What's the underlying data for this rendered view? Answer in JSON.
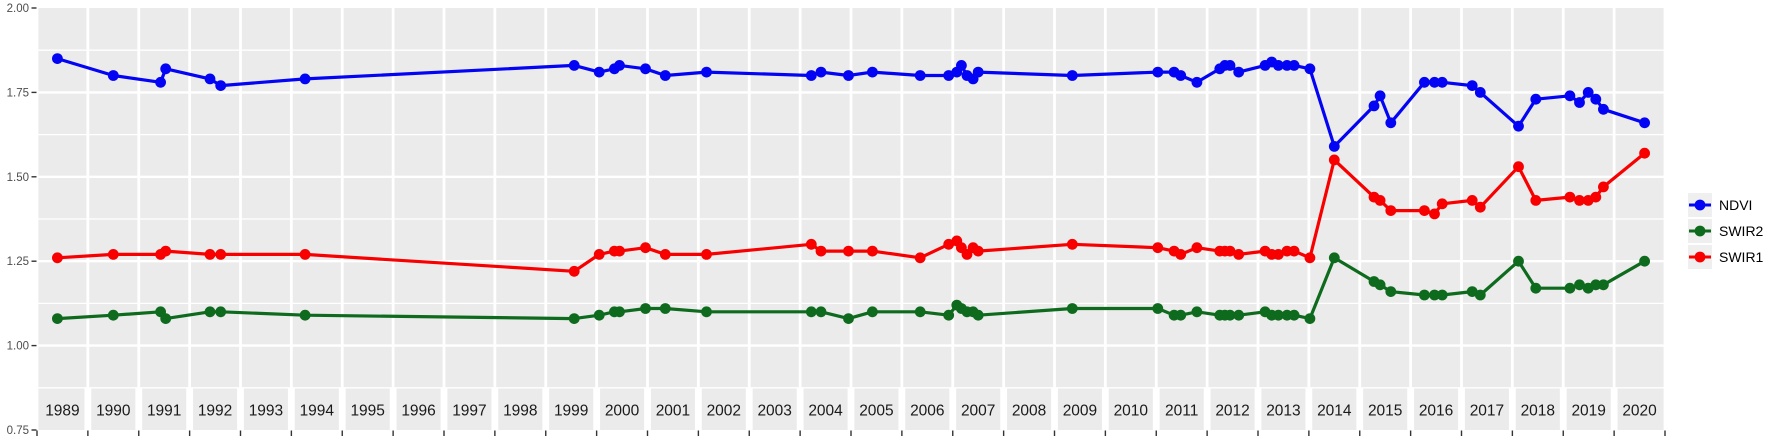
{
  "chart_data": {
    "type": "line",
    "title": "",
    "xlabel": "",
    "ylabel": "",
    "x": [
      1989.4,
      1990.5,
      1991.43,
      1991.53,
      1992.4,
      1992.61,
      1994.27,
      1999.56,
      2000.05,
      2000.35,
      2000.45,
      2000.96,
      2001.35,
      2002.16,
      2004.22,
      2004.41,
      2004.95,
      2005.42,
      2006.36,
      2006.92,
      2007.08,
      2007.17,
      2007.28,
      2007.4,
      2007.5,
      2009.35,
      2011.03,
      2011.35,
      2011.48,
      2011.8,
      2012.25,
      2012.35,
      2012.45,
      2012.62,
      2013.14,
      2013.27,
      2013.4,
      2013.57,
      2013.71,
      2014.02,
      2014.5,
      2015.28,
      2015.4,
      2015.61,
      2016.27,
      2016.47,
      2016.62,
      2017.21,
      2017.37,
      2018.12,
      2018.46,
      2019.13,
      2019.32,
      2019.49,
      2019.64,
      2019.79,
      2020.6
    ],
    "series": [
      {
        "name": "NDVI",
        "color": "#0404F5",
        "values": [
          1.85,
          1.8,
          1.78,
          1.82,
          1.79,
          1.77,
          1.79,
          1.83,
          1.81,
          1.82,
          1.83,
          1.82,
          1.8,
          1.81,
          1.8,
          1.81,
          1.8,
          1.81,
          1.8,
          1.8,
          1.81,
          1.83,
          1.8,
          1.79,
          1.81,
          1.8,
          1.81,
          1.81,
          1.8,
          1.78,
          1.82,
          1.83,
          1.83,
          1.81,
          1.83,
          1.84,
          1.83,
          1.83,
          1.83,
          1.82,
          1.59,
          1.71,
          1.74,
          1.66,
          1.78,
          1.78,
          1.78,
          1.77,
          1.75,
          1.65,
          1.73,
          1.74,
          1.72,
          1.75,
          1.73,
          1.7,
          1.66
        ]
      },
      {
        "name": "SWIR2",
        "color": "#0E6B1E",
        "values": [
          1.08,
          1.09,
          1.1,
          1.08,
          1.1,
          1.1,
          1.09,
          1.08,
          1.09,
          1.1,
          1.1,
          1.11,
          1.11,
          1.1,
          1.1,
          1.1,
          1.08,
          1.1,
          1.1,
          1.09,
          1.12,
          1.11,
          1.1,
          1.1,
          1.09,
          1.11,
          1.11,
          1.09,
          1.09,
          1.1,
          1.09,
          1.09,
          1.09,
          1.09,
          1.1,
          1.09,
          1.09,
          1.09,
          1.09,
          1.08,
          1.26,
          1.19,
          1.18,
          1.16,
          1.15,
          1.15,
          1.15,
          1.16,
          1.15,
          1.25,
          1.17,
          1.17,
          1.18,
          1.17,
          1.18,
          1.18,
          1.25
        ]
      },
      {
        "name": "SWIR1",
        "color": "#F80000",
        "values": [
          1.26,
          1.27,
          1.27,
          1.28,
          1.27,
          1.27,
          1.27,
          1.22,
          1.27,
          1.28,
          1.28,
          1.29,
          1.27,
          1.27,
          1.3,
          1.28,
          1.28,
          1.28,
          1.26,
          1.3,
          1.31,
          1.29,
          1.27,
          1.29,
          1.28,
          1.3,
          1.29,
          1.28,
          1.27,
          1.29,
          1.28,
          1.28,
          1.28,
          1.27,
          1.28,
          1.27,
          1.27,
          1.28,
          1.28,
          1.26,
          1.55,
          1.44,
          1.43,
          1.4,
          1.4,
          1.39,
          1.42,
          1.43,
          1.41,
          1.53,
          1.43,
          1.44,
          1.43,
          1.43,
          1.44,
          1.47,
          1.57
        ]
      }
    ],
    "x_axis": {
      "range": [
        1989.0,
        2021.0
      ],
      "year_labels": [
        "1989",
        "1990",
        "1991",
        "1992",
        "1993",
        "1994",
        "1995",
        "1996",
        "1997",
        "1998",
        "1999",
        "2000",
        "2001",
        "2002",
        "2003",
        "2004",
        "2005",
        "2006",
        "2007",
        "2008",
        "2009",
        "2010",
        "2011",
        "2012",
        "2013",
        "2014",
        "2015",
        "2016",
        "2017",
        "2018",
        "2019",
        "2020"
      ]
    },
    "y_axis": {
      "range": [
        0.75,
        2.0
      ],
      "tick_labels": [
        "2.00",
        "1.75",
        "1.50",
        "1.25",
        "1.00",
        "0.75"
      ],
      "tick_values": [
        2.0,
        1.75,
        1.5,
        1.25,
        1.0,
        0.75
      ],
      "minor_values": [
        1.875,
        1.625,
        1.375,
        1.125,
        0.875
      ]
    },
    "legend": {
      "position": "right",
      "entries": [
        "NDVI",
        "SWIR2",
        "SWIR1"
      ]
    },
    "style": {
      "panel_bg": "#EBEBEB",
      "grid_color": "#FFFFFF",
      "axis_text_color": "#4D4D4D",
      "year_text_color": "#1A1A1A",
      "tick_color": "#333333",
      "legend_key_bg": "#EFEFEF"
    }
  }
}
